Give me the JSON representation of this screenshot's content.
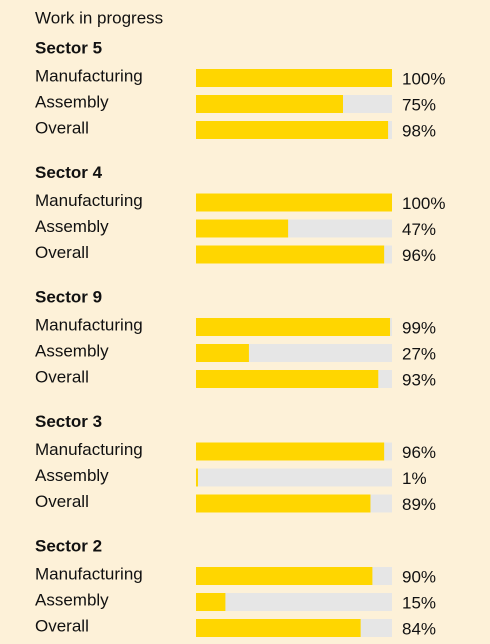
{
  "title": "Work in progress",
  "chart_data": [
    {
      "type": "bar",
      "orientation": "horizontal",
      "title": "Sector 5",
      "categories": [
        "Manufacturing",
        "Assembly",
        "Overall"
      ],
      "values": [
        100,
        75,
        98
      ],
      "value_labels": [
        "100%",
        "75%",
        "98%"
      ],
      "xlim": [
        0,
        100
      ],
      "color": "#ffd600",
      "track_color": "#e6e6e6"
    },
    {
      "type": "bar",
      "orientation": "horizontal",
      "title": "Sector 4",
      "categories": [
        "Manufacturing",
        "Assembly",
        "Overall"
      ],
      "values": [
        100,
        47,
        96
      ],
      "value_labels": [
        "100%",
        "47%",
        "96%"
      ],
      "xlim": [
        0,
        100
      ],
      "color": "#ffd600",
      "track_color": "#e6e6e6"
    },
    {
      "type": "bar",
      "orientation": "horizontal",
      "title": "Sector 9",
      "categories": [
        "Manufacturing",
        "Assembly",
        "Overall"
      ],
      "values": [
        99,
        27,
        93
      ],
      "value_labels": [
        "99%",
        "27%",
        "93%"
      ],
      "xlim": [
        0,
        100
      ],
      "color": "#ffd600",
      "track_color": "#e6e6e6"
    },
    {
      "type": "bar",
      "orientation": "horizontal",
      "title": "Sector 3",
      "categories": [
        "Manufacturing",
        "Assembly",
        "Overall"
      ],
      "values": [
        96,
        1,
        89
      ],
      "value_labels": [
        "96%",
        "1%",
        "89%"
      ],
      "xlim": [
        0,
        100
      ],
      "color": "#ffd600",
      "track_color": "#e6e6e6"
    },
    {
      "type": "bar",
      "orientation": "horizontal",
      "title": "Sector 2",
      "categories": [
        "Manufacturing",
        "Assembly",
        "Overall"
      ],
      "values": [
        90,
        15,
        84
      ],
      "value_labels": [
        "90%",
        "15%",
        "84%"
      ],
      "xlim": [
        0,
        100
      ],
      "color": "#ffd600",
      "track_color": "#e6e6e6"
    }
  ]
}
